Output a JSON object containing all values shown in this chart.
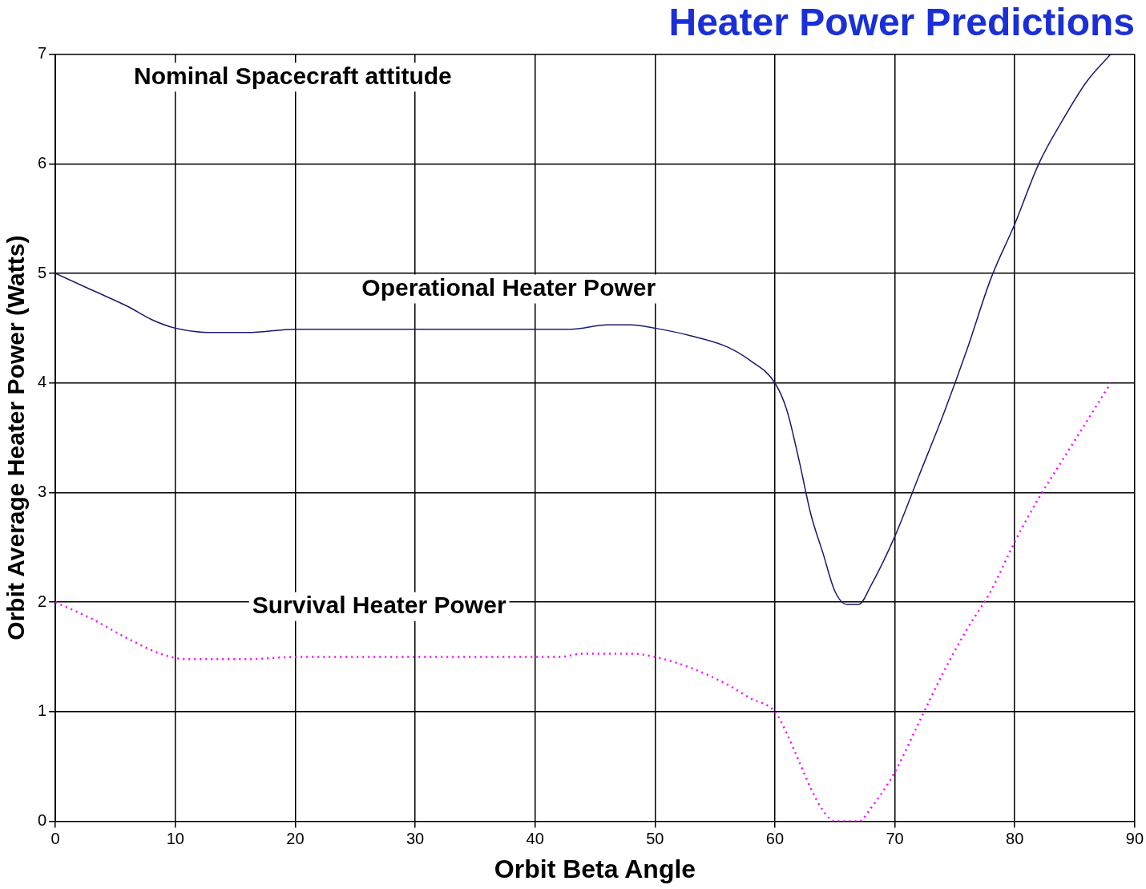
{
  "chart_data": {
    "type": "line",
    "title": "Heater Power Predictions",
    "xlabel": "Orbit Beta Angle",
    "ylabel": "Orbit Average Heater Power (Watts)",
    "xlim": [
      0,
      90
    ],
    "xticks": [
      0,
      10,
      20,
      30,
      40,
      50,
      60,
      70,
      80,
      90
    ],
    "ylim": [
      0,
      7
    ],
    "yticks": [
      0,
      1,
      2,
      3,
      4,
      5,
      6,
      7
    ],
    "grid": true,
    "legend": false,
    "annotations": [
      "Nominal Spacecraft attitude",
      "Operational Heater Power",
      "Survival Heater Power"
    ],
    "series": [
      {
        "color": "#1a1a6e",
        "line_style": "solid",
        "x": [
          0,
          3,
          6,
          8,
          10,
          13,
          16,
          20,
          30,
          43,
          46,
          48,
          50,
          53,
          56,
          58,
          60,
          61,
          62,
          63,
          64,
          65,
          66,
          67,
          68,
          70,
          72,
          74,
          76,
          78,
          80,
          82,
          84,
          86,
          88
        ],
        "values": [
          5,
          4.85,
          4.7,
          4.58,
          4.5,
          4.46,
          4.46,
          4.49,
          4.49,
          4.49,
          4.53,
          4.53,
          4.5,
          4.43,
          4.33,
          4.2,
          4,
          3.75,
          3.3,
          2.8,
          2.45,
          2.1,
          1.98,
          1.98,
          2.15,
          2.6,
          3.15,
          3.7,
          4.3,
          4.95,
          5.45,
          6,
          6.4,
          6.75,
          7
        ]
      },
      {
        "color": "#ff00ff",
        "line_style": "dotted",
        "x": [
          0,
          3,
          6,
          9,
          11,
          16,
          20,
          30,
          42,
          44,
          48,
          50,
          53,
          56,
          58,
          60,
          61,
          62,
          63,
          64,
          65,
          66,
          67,
          68,
          70,
          72,
          74,
          76,
          78,
          80,
          82,
          84,
          86,
          88
        ],
        "values": [
          2,
          1.85,
          1.67,
          1.52,
          1.48,
          1.48,
          1.5,
          1.5,
          1.5,
          1.53,
          1.53,
          1.5,
          1.4,
          1.25,
          1.12,
          1,
          0.8,
          0.55,
          0.3,
          0.1,
          0,
          0,
          0,
          0.12,
          0.45,
          0.9,
          1.35,
          1.75,
          2.1,
          2.55,
          2.95,
          3.3,
          3.65,
          4
        ]
      }
    ]
  }
}
